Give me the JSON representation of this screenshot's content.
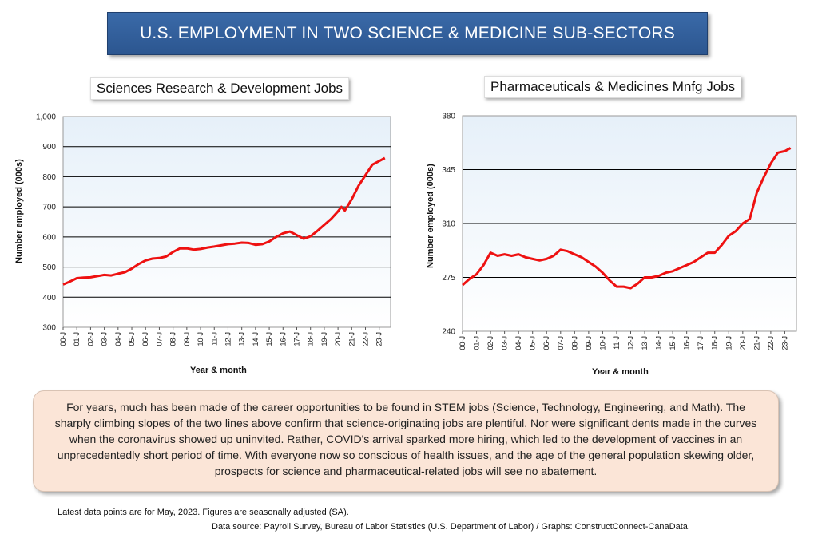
{
  "banner": {
    "title": "U.S. EMPLOYMENT IN TWO SCIENCE & MEDICINE SUB-SECTORS"
  },
  "note": {
    "text": "For years, much has been made of the career opportunities to be found in STEM jobs (Science, Technology, Engineering, and Math). The sharply climbing slopes of the two lines above confirm that science-originating jobs are plentiful. Nor were significant dents made in the curves when the coronavirus showed up uninvited. Rather, COVID's arrival sparked more hiring, which led to the development of vaccines in an unprecedentedly short period of time. With everyone now so conscious of health issues, and the age of the general population skewing older, prospects for science and pharmaceutical-related jobs will see no abatement."
  },
  "footer": {
    "line1": "Latest data points are for May, 2023. Figures are seasonally adjusted (SA).",
    "line2": "Data source: Payroll Survey, Bureau of Labor Statistics (U.S. Department of Labor) / Graphs: ConstructConnect-CanaData."
  },
  "colors": {
    "line": "#ee1111",
    "grid": "#000000",
    "plot_top": "#eaf3fa",
    "plot_bottom": "#ffffff"
  },
  "chart_data": [
    {
      "type": "line",
      "title": "Sciences Research & Development Jobs",
      "xlabel": "Year & month",
      "ylabel": "Number employed (000s)",
      "ylim": [
        300,
        1000
      ],
      "yticks": [
        300,
        400,
        500,
        600,
        700,
        800,
        900,
        1000
      ],
      "ytick_labels": [
        "300",
        "400",
        "500",
        "600",
        "700",
        "800",
        "900",
        "1,000"
      ],
      "xlim": [
        2000.0,
        2023.83
      ],
      "xtick_labels": [
        "00-J",
        "01-J",
        "02-J",
        "03-J",
        "04-J",
        "05-J",
        "06-J",
        "07-J",
        "08-J",
        "09-J",
        "10-J",
        "11-J",
        "12-J",
        "13-J",
        "14-J",
        "15-J",
        "16-J",
        "17-J",
        "18-J",
        "19-J",
        "20-J",
        "21-J",
        "22-J",
        "23-J"
      ],
      "series": [
        {
          "name": "Sciences Research & Development",
          "x": [
            2000.0,
            2000.5,
            2001.0,
            2001.5,
            2002.0,
            2002.5,
            2003.0,
            2003.5,
            2004.0,
            2004.5,
            2005.0,
            2005.5,
            2006.0,
            2006.5,
            2007.0,
            2007.5,
            2008.0,
            2008.5,
            2009.0,
            2009.5,
            2010.0,
            2010.5,
            2011.0,
            2011.5,
            2012.0,
            2012.5,
            2013.0,
            2013.5,
            2014.0,
            2014.5,
            2015.0,
            2015.5,
            2016.0,
            2016.5,
            2017.0,
            2017.5,
            2018.0,
            2018.5,
            2019.0,
            2019.5,
            2020.0,
            2020.25,
            2020.5,
            2021.0,
            2021.5,
            2022.0,
            2022.5,
            2023.0,
            2023.41
          ],
          "y": [
            442,
            452,
            463,
            465,
            466,
            470,
            474,
            472,
            478,
            483,
            495,
            510,
            522,
            528,
            530,
            535,
            550,
            562,
            562,
            558,
            560,
            565,
            568,
            572,
            576,
            578,
            581,
            580,
            574,
            576,
            585,
            600,
            612,
            618,
            606,
            594,
            602,
            620,
            640,
            660,
            685,
            700,
            688,
            725,
            770,
            805,
            840,
            852,
            862
          ]
        }
      ]
    },
    {
      "type": "line",
      "title": "Pharmaceuticals & Medicines Mnfg Jobs",
      "xlabel": "Year & month",
      "ylabel": "Number employed (000s)",
      "ylim": [
        240,
        380
      ],
      "yticks": [
        240,
        275,
        310,
        345,
        380
      ],
      "ytick_labels": [
        "240",
        "275",
        "310",
        "345",
        "380"
      ],
      "xlim": [
        2000.0,
        2023.83
      ],
      "xtick_labels": [
        "00-J",
        "01-J",
        "02-J",
        "03-J",
        "04-J",
        "05-J",
        "06-J",
        "07-J",
        "08-J",
        "09-J",
        "10-J",
        "11-J",
        "12-J",
        "13-J",
        "14-J",
        "15-J",
        "16-J",
        "17-J",
        "18-J",
        "19-J",
        "20-J",
        "21-J",
        "22-J",
        "23-J"
      ],
      "series": [
        {
          "name": "Pharmaceuticals & Medicines Mnfg",
          "x": [
            2000.0,
            2000.5,
            2001.0,
            2001.5,
            2002.0,
            2002.5,
            2003.0,
            2003.5,
            2004.0,
            2004.5,
            2005.0,
            2005.5,
            2006.0,
            2006.5,
            2007.0,
            2007.5,
            2008.0,
            2008.5,
            2009.0,
            2009.5,
            2010.0,
            2010.5,
            2011.0,
            2011.5,
            2012.0,
            2012.5,
            2013.0,
            2013.5,
            2014.0,
            2014.5,
            2015.0,
            2015.5,
            2016.0,
            2016.5,
            2017.0,
            2017.5,
            2018.0,
            2018.5,
            2019.0,
            2019.5,
            2020.0,
            2020.5,
            2021.0,
            2021.5,
            2022.0,
            2022.5,
            2023.0,
            2023.41
          ],
          "y": [
            270,
            274,
            277,
            283,
            291,
            289,
            290,
            289,
            290,
            288,
            287,
            286,
            287,
            289,
            293,
            292,
            290,
            288,
            285,
            282,
            278,
            273,
            269,
            269,
            268,
            271,
            275,
            275,
            276,
            278,
            279,
            281,
            283,
            285,
            288,
            291,
            291,
            296,
            302,
            305,
            310,
            313,
            330,
            340,
            349,
            356,
            357,
            359
          ]
        }
      ]
    }
  ]
}
